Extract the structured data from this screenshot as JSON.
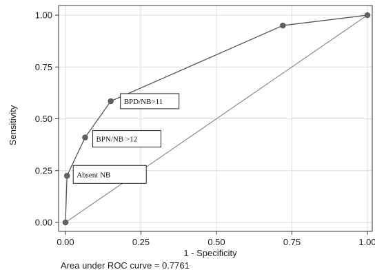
{
  "chart_data": {
    "type": "line",
    "title": "",
    "xlabel": "1 - Specificity",
    "ylabel": "Sensitivity",
    "xlim": [
      0,
      1
    ],
    "ylim": [
      0,
      1
    ],
    "x_ticks": [
      "0.00",
      "0.25",
      "0.50",
      "0.75",
      "1.00"
    ],
    "y_ticks": [
      "0.00",
      "0.25",
      "0.50",
      "0.75",
      "1.00"
    ],
    "grid": true,
    "series": [
      {
        "type": "line",
        "x": [
          0.0,
          0.005,
          0.065,
          0.15,
          0.72,
          1.0
        ],
        "y": [
          0.0,
          0.225,
          0.41,
          0.585,
          0.95,
          1.0
        ],
        "markers": true
      },
      {
        "type": "line",
        "x": [
          0.0,
          1.0
        ],
        "y": [
          0.0,
          1.0
        ],
        "markers": false
      }
    ],
    "annotations": [
      {
        "text": "Absent NB",
        "x": 0.005,
        "y": 0.225
      },
      {
        "text": "BPN/NB >12",
        "x": 0.065,
        "y": 0.41
      },
      {
        "text": "BPD/NB>11",
        "x": 0.15,
        "y": 0.585
      }
    ],
    "caption": "Area under ROC curve = 0.7761"
  },
  "colors": {
    "roc_line": "#555555",
    "marker": "#606060",
    "diagonal": "#8a8a8a",
    "grid": "#dddddd",
    "axis": "#333333"
  }
}
